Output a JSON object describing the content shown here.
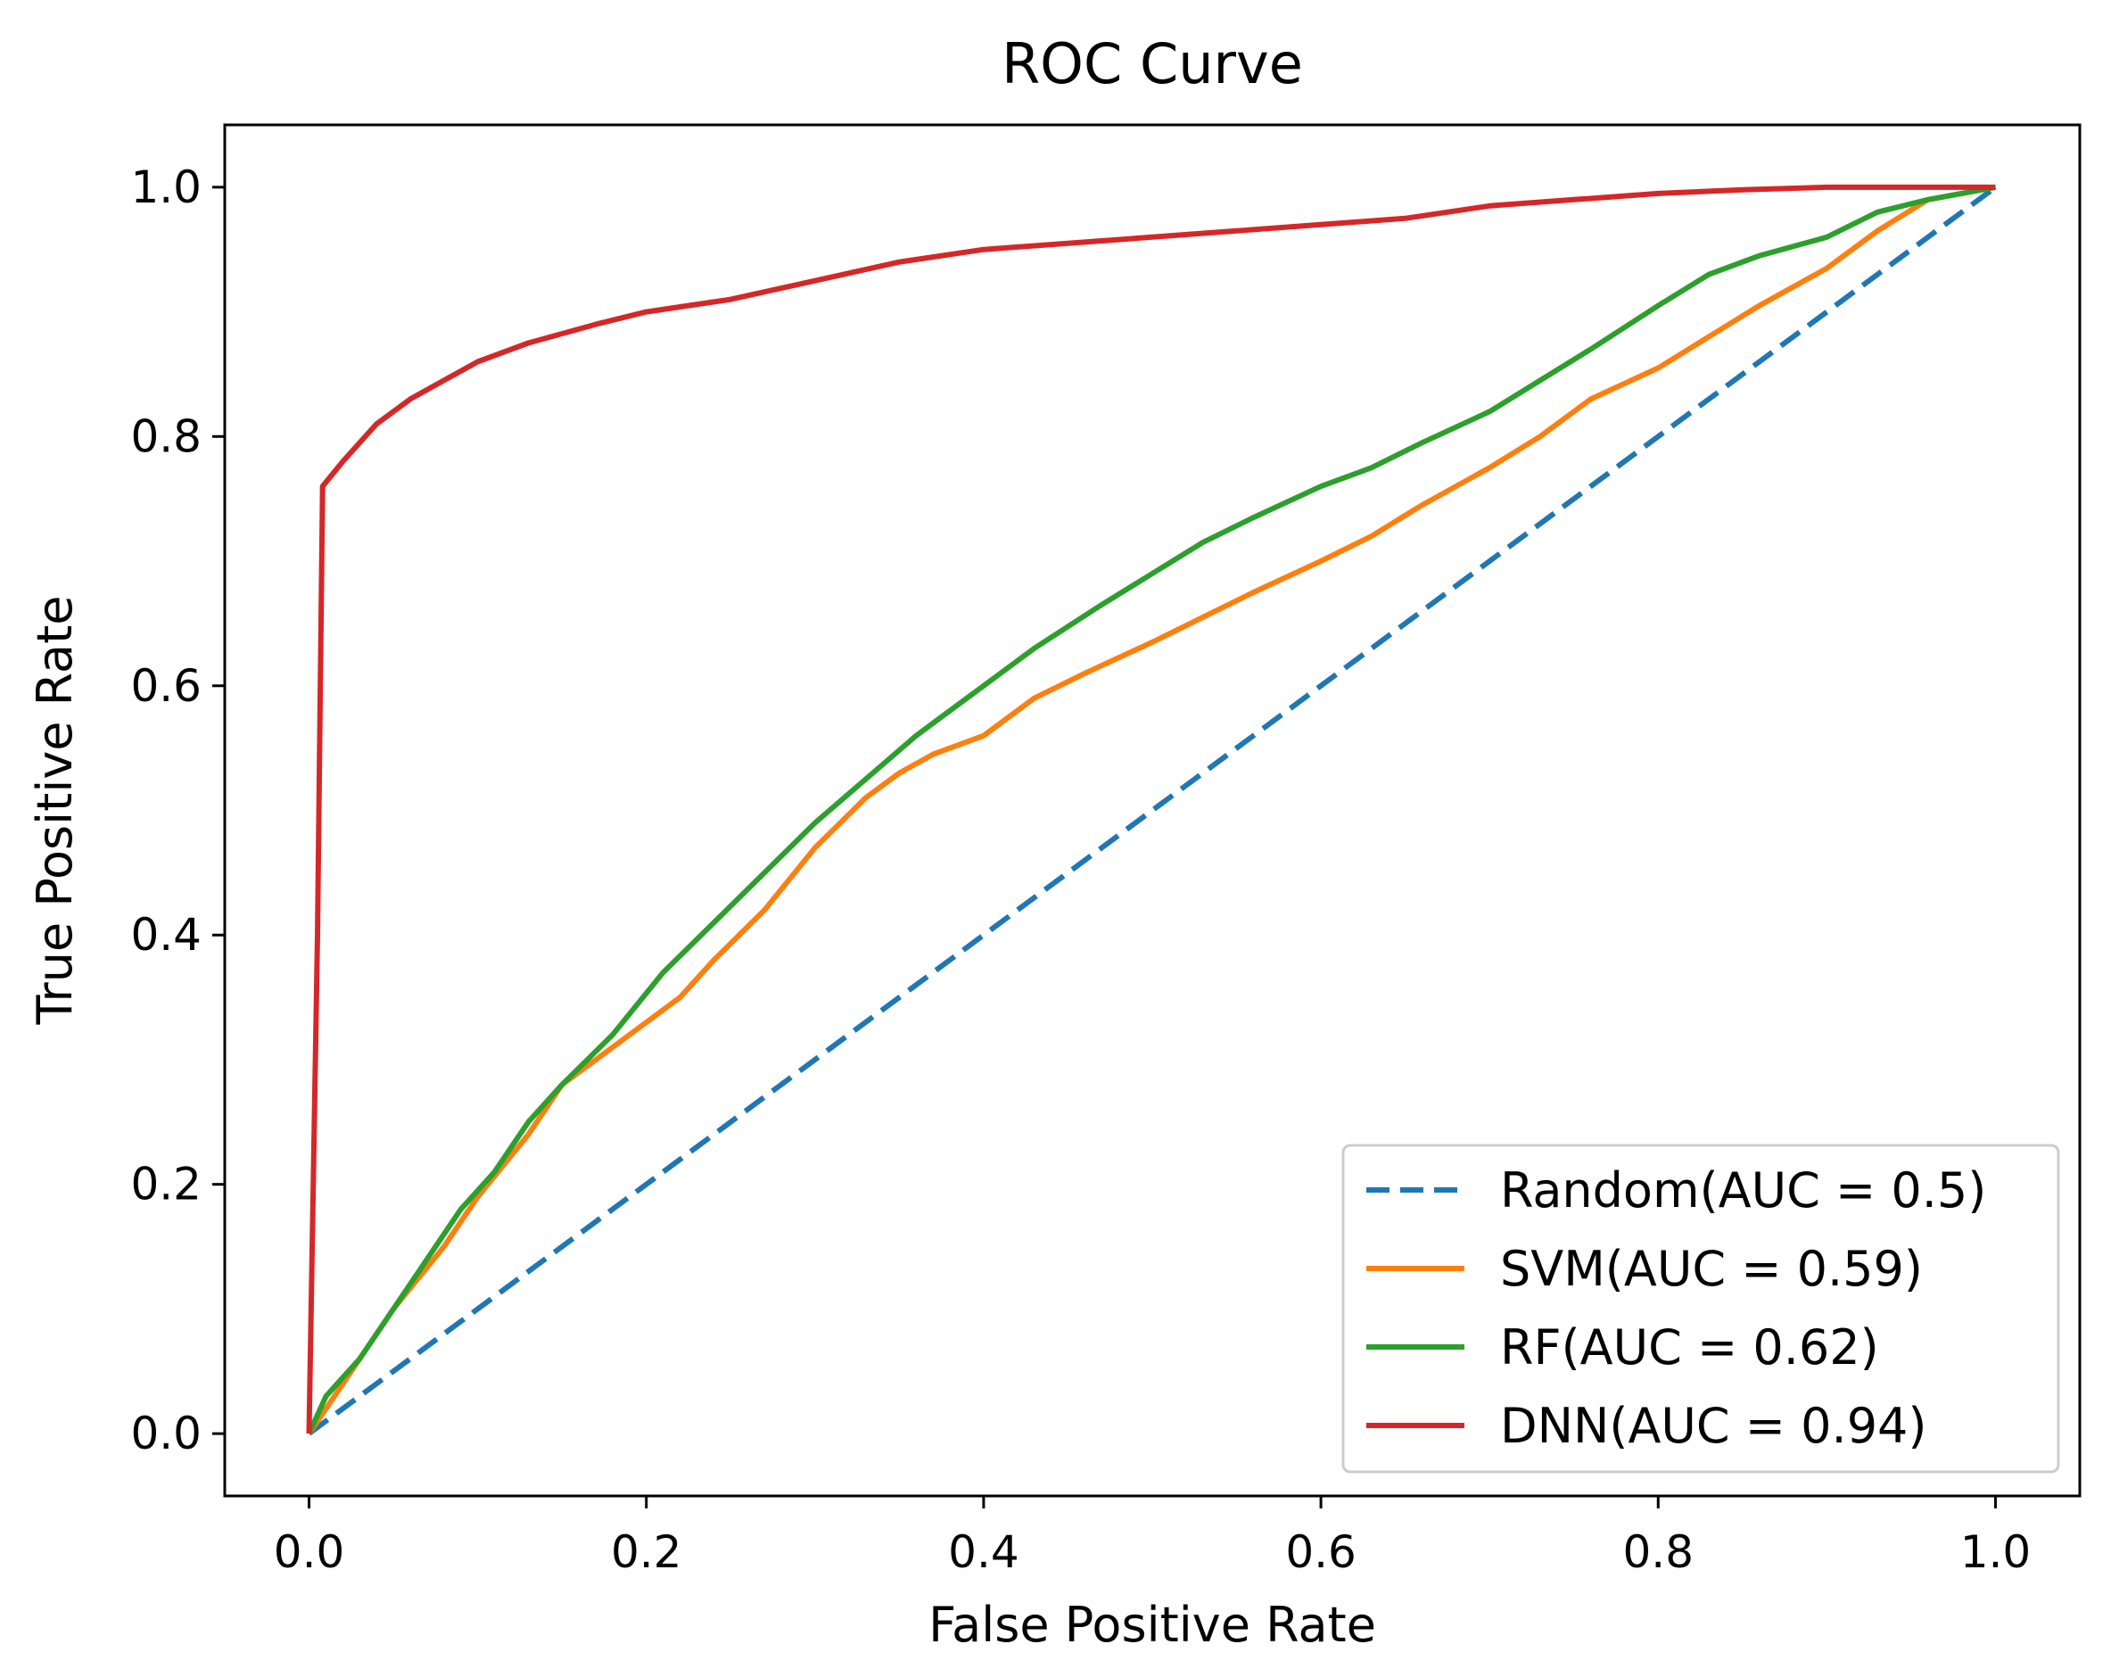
{
  "chart_data": {
    "type": "line",
    "title": "ROC Curve",
    "xlabel": "False Positive Rate",
    "ylabel": "True Positive Rate",
    "xlim": [
      -0.05,
      1.05
    ],
    "ylim": [
      -0.05,
      1.05
    ],
    "xticks": [
      0.0,
      0.2,
      0.4,
      0.6,
      0.8,
      1.0
    ],
    "xtick_labels": [
      "0.0",
      "0.2",
      "0.4",
      "0.6",
      "0.8",
      "1.0"
    ],
    "yticks": [
      0.0,
      0.2,
      0.4,
      0.6,
      0.8,
      1.0
    ],
    "ytick_labels": [
      "0.0",
      "0.2",
      "0.4",
      "0.6",
      "0.8",
      "1.0"
    ],
    "grid": false,
    "legend_position": "lower-right",
    "series": [
      {
        "name": "Random(AUC = 0.5)",
        "color": "#1f77b4",
        "style": "dashed",
        "x": [
          0.0,
          1.0
        ],
        "y": [
          0.0,
          1.0
        ]
      },
      {
        "name": "SVM(AUC = 0.59)",
        "color": "#ff7f0e",
        "style": "solid",
        "x": [
          0.0,
          0.01,
          0.03,
          0.05,
          0.08,
          0.1,
          0.13,
          0.15,
          0.17,
          0.2,
          0.22,
          0.24,
          0.27,
          0.3,
          0.33,
          0.35,
          0.37,
          0.4,
          0.43,
          0.46,
          0.5,
          0.53,
          0.56,
          0.6,
          0.63,
          0.66,
          0.7,
          0.73,
          0.76,
          0.8,
          0.83,
          0.86,
          0.9,
          0.93,
          0.96,
          1.0
        ],
        "y": [
          0.0,
          0.02,
          0.06,
          0.1,
          0.15,
          0.19,
          0.24,
          0.28,
          0.3,
          0.33,
          0.35,
          0.38,
          0.42,
          0.47,
          0.51,
          0.53,
          0.545,
          0.56,
          0.59,
          0.61,
          0.635,
          0.655,
          0.675,
          0.7,
          0.72,
          0.745,
          0.775,
          0.8,
          0.83,
          0.855,
          0.88,
          0.905,
          0.935,
          0.965,
          0.99,
          1.0
        ]
      },
      {
        "name": "RF(AUC = 0.62)",
        "color": "#2ca02c",
        "style": "solid",
        "x": [
          0.0,
          0.01,
          0.03,
          0.05,
          0.07,
          0.09,
          0.11,
          0.13,
          0.15,
          0.18,
          0.21,
          0.24,
          0.27,
          0.3,
          0.33,
          0.36,
          0.38,
          0.4,
          0.43,
          0.47,
          0.5,
          0.53,
          0.56,
          0.6,
          0.63,
          0.66,
          0.7,
          0.73,
          0.76,
          0.8,
          0.83,
          0.86,
          0.9,
          0.93,
          0.96,
          1.0
        ],
        "y": [
          0.0,
          0.03,
          0.06,
          0.1,
          0.14,
          0.18,
          0.21,
          0.25,
          0.28,
          0.32,
          0.37,
          0.41,
          0.45,
          0.49,
          0.525,
          0.56,
          0.58,
          0.6,
          0.63,
          0.665,
          0.69,
          0.715,
          0.735,
          0.76,
          0.775,
          0.795,
          0.82,
          0.845,
          0.87,
          0.905,
          0.93,
          0.945,
          0.96,
          0.98,
          0.99,
          1.0
        ]
      },
      {
        "name": "DNN(AUC = 0.94)",
        "color": "#d62728",
        "style": "solid",
        "x": [
          0.0,
          0.005,
          0.008,
          0.02,
          0.04,
          0.06,
          0.08,
          0.1,
          0.13,
          0.17,
          0.2,
          0.25,
          0.3,
          0.35,
          0.4,
          0.45,
          0.5,
          0.55,
          0.6,
          0.65,
          0.7,
          0.75,
          0.8,
          0.85,
          0.9,
          0.95,
          1.0
        ],
        "y": [
          0.0,
          0.4,
          0.76,
          0.78,
          0.81,
          0.83,
          0.845,
          0.86,
          0.875,
          0.89,
          0.9,
          0.91,
          0.925,
          0.94,
          0.95,
          0.955,
          0.96,
          0.965,
          0.97,
          0.975,
          0.985,
          0.99,
          0.995,
          0.998,
          1.0,
          1.0,
          1.0
        ]
      }
    ]
  }
}
